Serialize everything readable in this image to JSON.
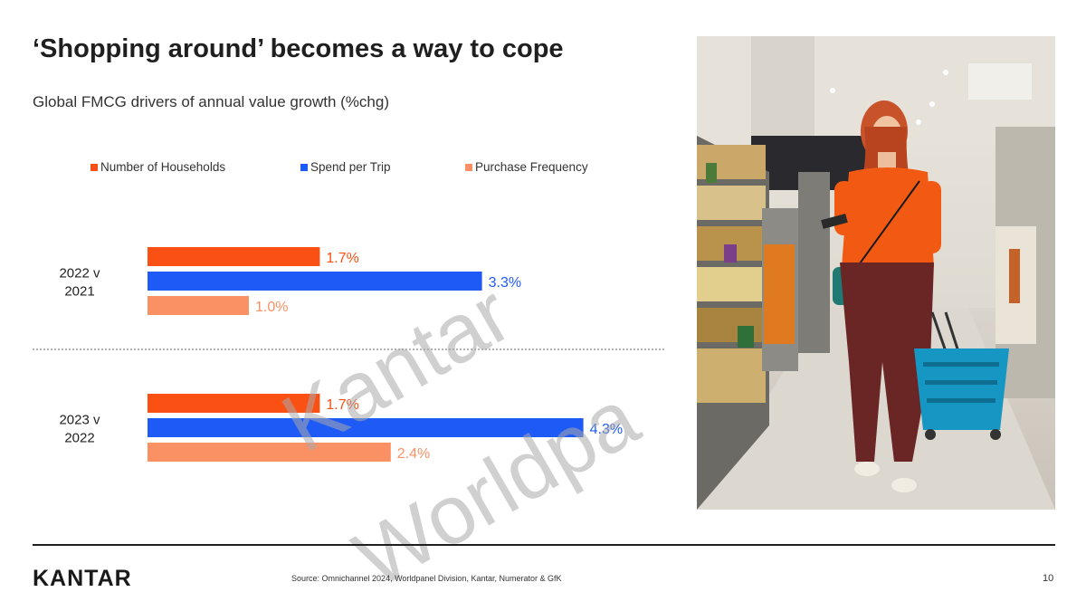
{
  "slide": {
    "title": "‘Shopping around’ becomes a way to cope",
    "subtitle": "Global FMCG drivers of annual value growth (%chg)",
    "watermark_lines": [
      "Kantar",
      "Worldpa"
    ],
    "source": "Source: Omnichannel 2024, Worldpanel Division, Kantar, Numerator & GfK",
    "logo": "KANTAR",
    "page_number": "10"
  },
  "chart_data": {
    "type": "bar",
    "orientation": "horizontal",
    "categories": [
      "2022 v 2021",
      "2023 v 2022"
    ],
    "series": [
      {
        "name": "Number of Households",
        "color": "#fa5014",
        "values": [
          1.7,
          1.7
        ]
      },
      {
        "name": "Spend per Trip",
        "color": "#1e5af5",
        "values": [
          3.3,
          4.3
        ]
      },
      {
        "name": "Purchase Frequency",
        "color": "#f99164",
        "values": [
          1.0,
          2.4
        ]
      }
    ],
    "value_unit": "%",
    "legend_position": "top",
    "grid": false,
    "group_separator": "dotted"
  },
  "photo": {
    "icon": "shopper-in-supermarket-photo"
  }
}
